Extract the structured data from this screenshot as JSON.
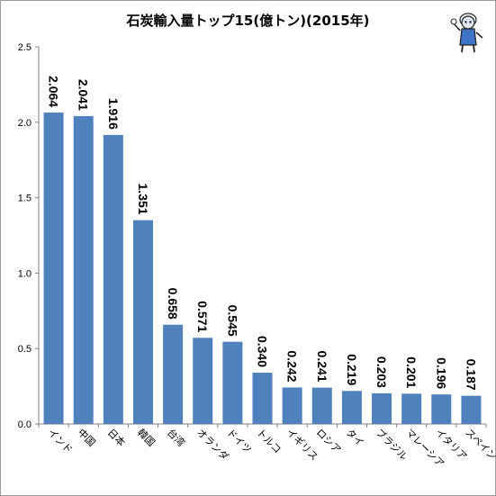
{
  "chart_data": {
    "type": "bar",
    "title": "石炭輸入量トップ15(億トン)(2015年)",
    "xlabel": "",
    "ylabel": "",
    "categories": [
      "インド",
      "中国",
      "日本",
      "韓国",
      "台湾",
      "オランダ",
      "ドイツ",
      "トルコ",
      "イギリス",
      "ロシア",
      "タイ",
      "ブラジル",
      "マレーシア",
      "イタリア",
      "スペイン"
    ],
    "values": [
      2.064,
      2.041,
      1.916,
      1.351,
      0.658,
      0.571,
      0.545,
      0.34,
      0.242,
      0.241,
      0.219,
      0.203,
      0.201,
      0.196,
      0.187
    ],
    "value_labels": [
      "2.064",
      "2.041",
      "1.916",
      "1.351",
      "0.658",
      "0.571",
      "0.545",
      "0.340",
      "0.242",
      "0.241",
      "0.219",
      "0.203",
      "0.201",
      "0.196",
      "0.187"
    ],
    "ylim": [
      0,
      2.5
    ],
    "yticks": [
      "0.0",
      "0.5",
      "1.0",
      "1.5",
      "2.0",
      "2.5"
    ],
    "grid": false,
    "legend": "none",
    "bar_color": "#4f81bd"
  }
}
